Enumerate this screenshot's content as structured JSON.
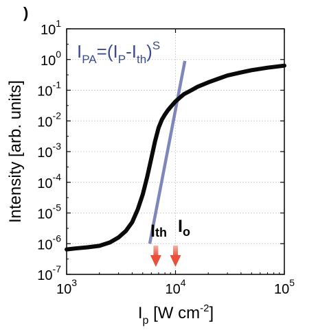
{
  "chart_data": {
    "type": "line",
    "panel_label": ")",
    "title": "",
    "xlabel": {
      "base": "I",
      "sub": "p",
      "rest": " [W cm",
      "sup": "-2",
      "close": "]"
    },
    "ylabel": "Intensity [arb. units]",
    "xscale": "log",
    "yscale": "log",
    "xlim": [
      1000,
      100000
    ],
    "ylim": [
      1e-07,
      10
    ],
    "grid": true,
    "xticks": [
      {
        "value": 1000,
        "base": "10",
        "exp": "3"
      },
      {
        "value": 10000,
        "base": "10",
        "exp": "4"
      },
      {
        "value": 100000,
        "base": "10",
        "exp": "5"
      }
    ],
    "yticks": [
      {
        "value": 10,
        "base": "10",
        "exp": "1"
      },
      {
        "value": 1,
        "base": "10",
        "exp": "0"
      },
      {
        "value": 0.1,
        "base": "10",
        "exp": "-1"
      },
      {
        "value": 0.01,
        "base": "10",
        "exp": "-2"
      },
      {
        "value": 0.001,
        "base": "10",
        "exp": "-3"
      },
      {
        "value": 0.0001,
        "base": "10",
        "exp": "-4"
      },
      {
        "value": 1e-05,
        "base": "10",
        "exp": "-5"
      },
      {
        "value": 1e-06,
        "base": "10",
        "exp": "-6"
      },
      {
        "value": 1e-07,
        "base": "10",
        "exp": "-7"
      }
    ],
    "series": [
      {
        "color": "#0a0a0a",
        "x": [
          1000,
          1200,
          1500,
          2000,
          2500,
          3000,
          3500,
          4000,
          4500,
          5000,
          5500,
          6000,
          6500,
          7000,
          7500,
          8000,
          8500,
          9000,
          9500,
          10000,
          11000,
          12000,
          14000,
          16000,
          20000,
          25000,
          30000,
          40000,
          50000,
          70000,
          100000
        ],
        "y": [
          6.5e-07,
          7e-07,
          7.5e-07,
          8.5e-07,
          1.1e-06,
          1.6e-06,
          2.6e-06,
          5e-06,
          1.3e-05,
          4e-05,
          0.00015,
          0.0006,
          0.0022,
          0.006,
          0.011,
          0.016,
          0.022,
          0.028,
          0.035,
          0.043,
          0.058,
          0.075,
          0.1,
          0.13,
          0.18,
          0.24,
          0.3,
          0.38,
          0.45,
          0.54,
          0.63
        ]
      },
      {
        "color": "#7f86bb",
        "x": [
          5800,
          12200
        ],
        "y": [
          1e-06,
          0.9
        ]
      }
    ],
    "annotations": [
      {
        "id": "fit-equation",
        "color": "#3b4b8c",
        "parts": {
          "i1": "I",
          "s1": "PA",
          "eq": "=(",
          "i2": "I",
          "s2": "P",
          "dash": "-",
          "i3": "I",
          "s3": "th",
          "close": ")",
          "exp": "S"
        }
      },
      {
        "id": "threshold",
        "base": "I",
        "sub": "th",
        "x": 6600,
        "arrow_color": "#e8503c"
      },
      {
        "id": "onset",
        "base": "I",
        "sub": "o",
        "x": 10000,
        "arrow_color": "#e8503c"
      }
    ]
  }
}
